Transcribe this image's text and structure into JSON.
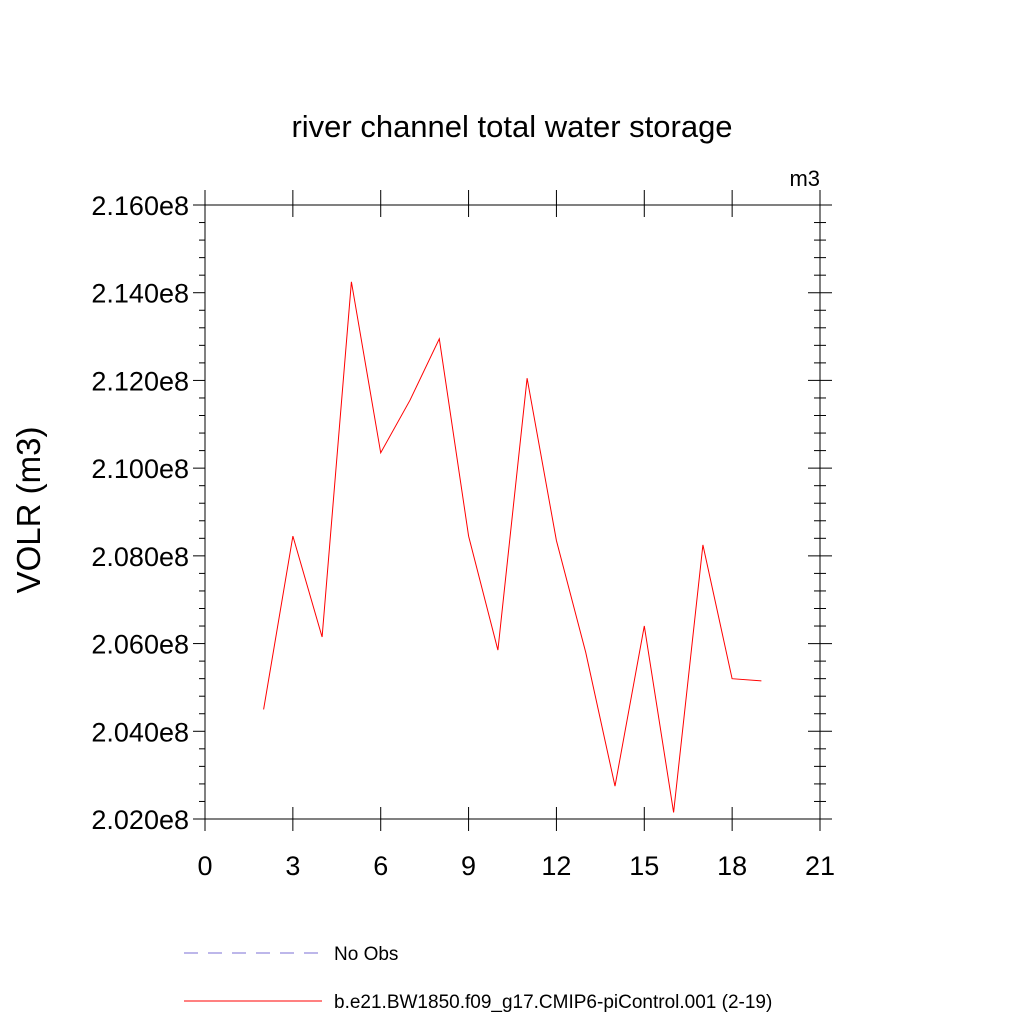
{
  "chart_data": {
    "type": "line",
    "title": "river channel total water storage",
    "units": "m3",
    "ylabel": "VOLR  (m3)",
    "xlabel": "",
    "xlim": [
      0,
      21
    ],
    "ylim": [
      202000000,
      216000000
    ],
    "x_ticks": [
      0,
      3,
      6,
      9,
      12,
      15,
      18,
      21
    ],
    "x_tick_labels": [
      "0",
      "3",
      "6",
      "9",
      "12",
      "15",
      "18",
      "21"
    ],
    "y_ticks": [
      202000000,
      204000000,
      206000000,
      208000000,
      210000000,
      212000000,
      214000000,
      216000000
    ],
    "y_tick_labels": [
      "2.020e8",
      "2.040e8",
      "2.060e8",
      "2.080e8",
      "2.100e8",
      "2.120e8",
      "2.140e8",
      "2.160e8"
    ],
    "grid": false,
    "legend_position": "bottom",
    "series": [
      {
        "name": "No Obs",
        "color": "#7b6fd6",
        "style": "dashed",
        "x": [],
        "y": []
      },
      {
        "name": "b.e21.BW1850.f09_g17.CMIP6-piControl.001 (2-19)",
        "color": "#ff0000",
        "style": "solid",
        "x": [
          2,
          3,
          4,
          5,
          6,
          7,
          8,
          9,
          10,
          11,
          12,
          13,
          14,
          15,
          16,
          17,
          18,
          19
        ],
        "y": [
          204500000,
          208450000,
          206150000,
          214250000,
          210350000,
          211550000,
          212950000,
          208450000,
          205850000,
          212050000,
          208350000,
          205800000,
          202750000,
          206400000,
          202150000,
          208250000,
          205200000,
          205150000
        ]
      }
    ]
  }
}
